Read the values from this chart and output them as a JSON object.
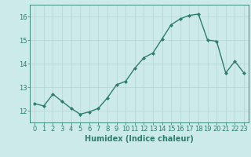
{
  "x": [
    0,
    1,
    2,
    3,
    4,
    5,
    6,
    7,
    8,
    9,
    10,
    11,
    12,
    13,
    14,
    15,
    16,
    17,
    18,
    19,
    20,
    21,
    22,
    23
  ],
  "y": [
    12.3,
    12.2,
    12.7,
    12.4,
    12.1,
    11.85,
    11.95,
    12.1,
    12.55,
    13.1,
    13.25,
    13.8,
    14.25,
    14.45,
    15.05,
    15.65,
    15.9,
    16.05,
    16.1,
    15.0,
    14.95,
    13.6,
    14.1,
    13.6
  ],
  "line_color": "#2e7d6e",
  "marker": "D",
  "markersize": 2.0,
  "linewidth": 1.0,
  "bg_color": "#cceae9",
  "grid_color": "#b8d8d8",
  "xlabel": "Humidex (Indice chaleur)",
  "xlabel_fontsize": 7,
  "tick_fontsize": 6,
  "ylim": [
    11.5,
    16.5
  ],
  "yticks": [
    12,
    13,
    14,
    15,
    16
  ],
  "xticks": [
    0,
    1,
    2,
    3,
    4,
    5,
    6,
    7,
    8,
    9,
    10,
    11,
    12,
    13,
    14,
    15,
    16,
    17,
    18,
    19,
    20,
    21,
    22,
    23
  ],
  "xlim": [
    -0.5,
    23.5
  ]
}
